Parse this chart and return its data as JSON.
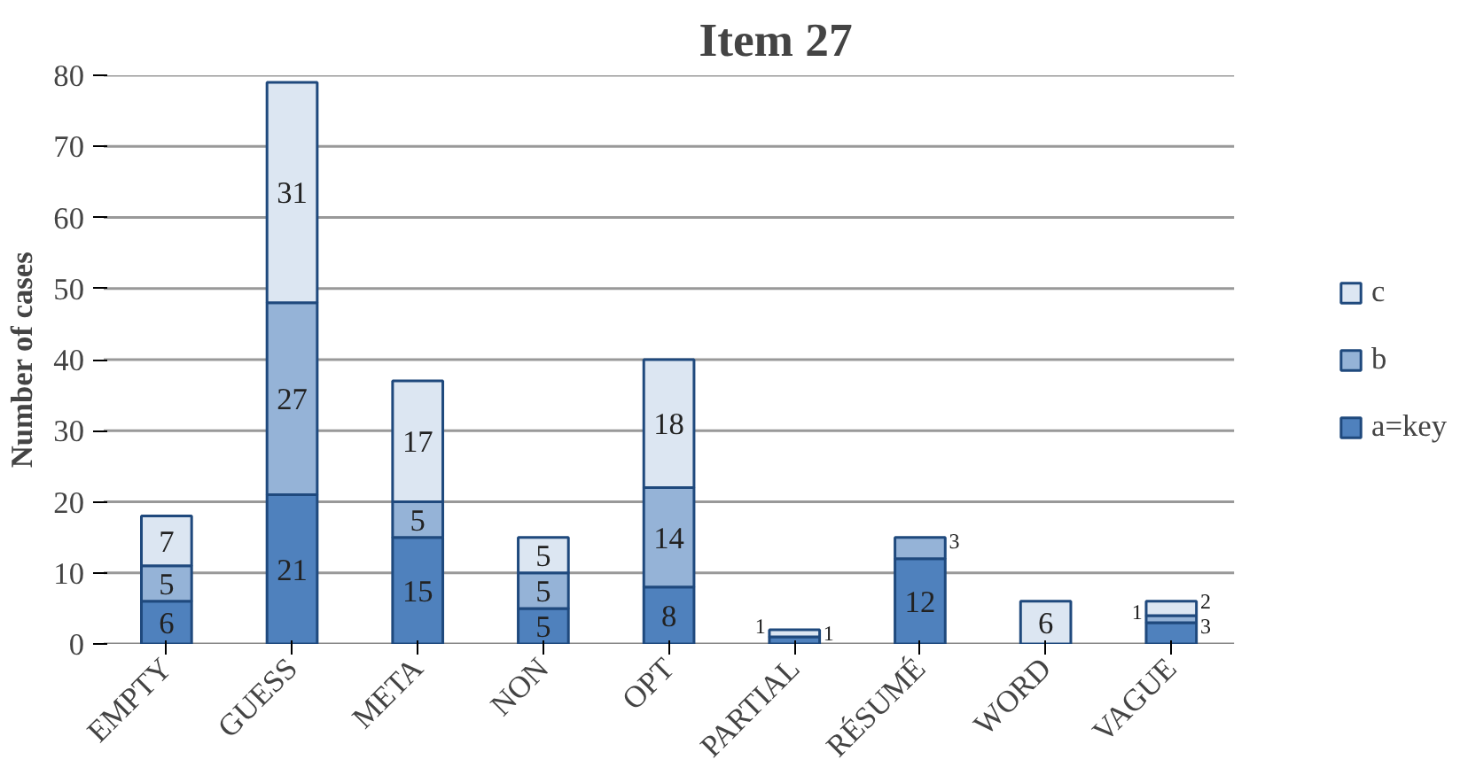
{
  "chart_data": {
    "type": "bar",
    "title": "Item 27",
    "ylabel": "Number of cases",
    "stacked": true,
    "categories": [
      "EMPTY",
      "GUESS",
      "META",
      "NON",
      "OPT",
      "PARTIAL",
      "RÉSUMÉ",
      "WORD",
      "VAGUE"
    ],
    "series": [
      {
        "name": "a=key",
        "color": "#4f81bd",
        "values": [
          6,
          21,
          15,
          5,
          8,
          1,
          12,
          0,
          3
        ],
        "value_labels": [
          "6",
          "21",
          "15",
          "5",
          "8",
          "1",
          "12",
          null,
          "3"
        ]
      },
      {
        "name": "b",
        "color": "#95b3d7",
        "values": [
          5,
          27,
          5,
          5,
          14,
          0,
          3,
          0,
          1
        ],
        "value_labels": [
          "5",
          "27",
          "5",
          "5",
          "14",
          null,
          "3",
          null,
          "1"
        ]
      },
      {
        "name": "c",
        "color": "#dce6f2",
        "values": [
          7,
          31,
          17,
          5,
          18,
          1,
          0,
          6,
          2
        ],
        "value_labels": [
          "7",
          "31",
          "17",
          "5",
          "18",
          "1",
          null,
          "6",
          "2"
        ]
      }
    ],
    "ylim": [
      0,
      80
    ],
    "yticks": [
      0,
      10,
      20,
      30,
      40,
      50,
      60,
      70,
      80
    ],
    "grid": "y",
    "legend": "right"
  }
}
